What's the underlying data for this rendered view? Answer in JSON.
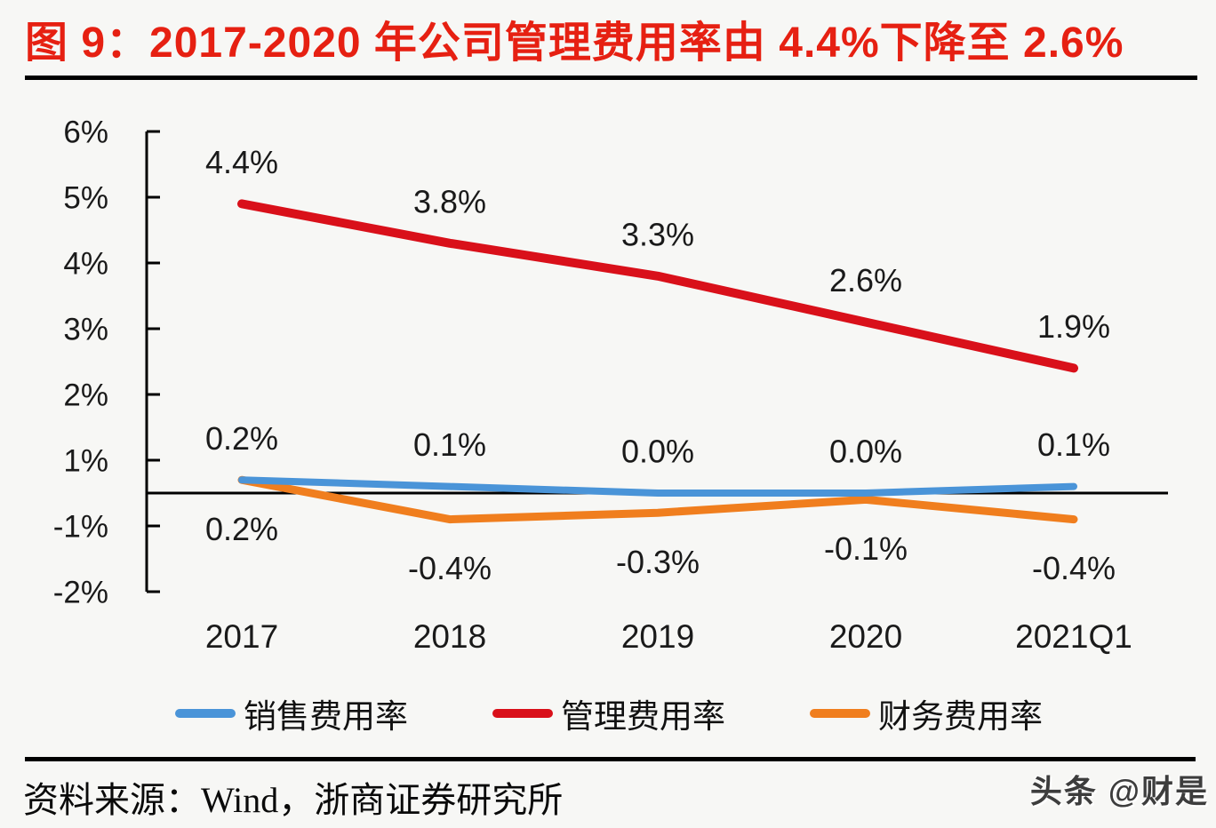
{
  "figure": {
    "title": "图 9：2017-2020 年公司管理费用率由 4.4%下降至 2.6%",
    "source": "资料来源：Wind，浙商证券研究所",
    "watermark": "头条 @财是"
  },
  "chart_data": {
    "type": "line",
    "title": "图 9：2017-2020 年公司管理费用率由 4.4%下降至 2.6%",
    "categories": [
      "2017",
      "2018",
      "2019",
      "2020",
      "2021Q1"
    ],
    "series": [
      {
        "key": "sales-expense-ratio",
        "name": "销售费用率",
        "color": "#4a94d8",
        "values": [
          0.2,
          0.1,
          0.0,
          0.0,
          0.1
        ],
        "point_labels": [
          "0.2%",
          "0.1%",
          "0.0%",
          "0.0%",
          "0.1%"
        ],
        "label_side": "above"
      },
      {
        "key": "management-expense-ratio",
        "name": "管理费用率",
        "color": "#d9101a",
        "values": [
          4.4,
          3.8,
          3.3,
          2.6,
          1.9
        ],
        "point_labels": [
          "4.4%",
          "3.8%",
          "3.3%",
          "2.6%",
          "1.9%"
        ],
        "label_side": "above"
      },
      {
        "key": "financial-expense-ratio",
        "name": "财务费用率",
        "color": "#f07e1e",
        "values": [
          0.2,
          -0.4,
          -0.3,
          -0.1,
          -0.4
        ],
        "point_labels": [
          "0.2%",
          "-0.4%",
          "-0.3%",
          "-0.1%",
          "-0.4%"
        ],
        "label_side": "below"
      }
    ],
    "y_ticks": [
      {
        "label": "6%",
        "value": 6
      },
      {
        "label": "5%",
        "value": 5
      },
      {
        "label": "4%",
        "value": 4
      },
      {
        "label": "3%",
        "value": 3
      },
      {
        "label": "2%",
        "value": 2
      },
      {
        "label": "1%",
        "value": 1
      },
      {
        "label": "-1%",
        "value": -1
      },
      {
        "label": "-2%",
        "value": -2
      }
    ],
    "ylim": [
      -2,
      6
    ],
    "grid": false,
    "legend_position": "bottom"
  }
}
